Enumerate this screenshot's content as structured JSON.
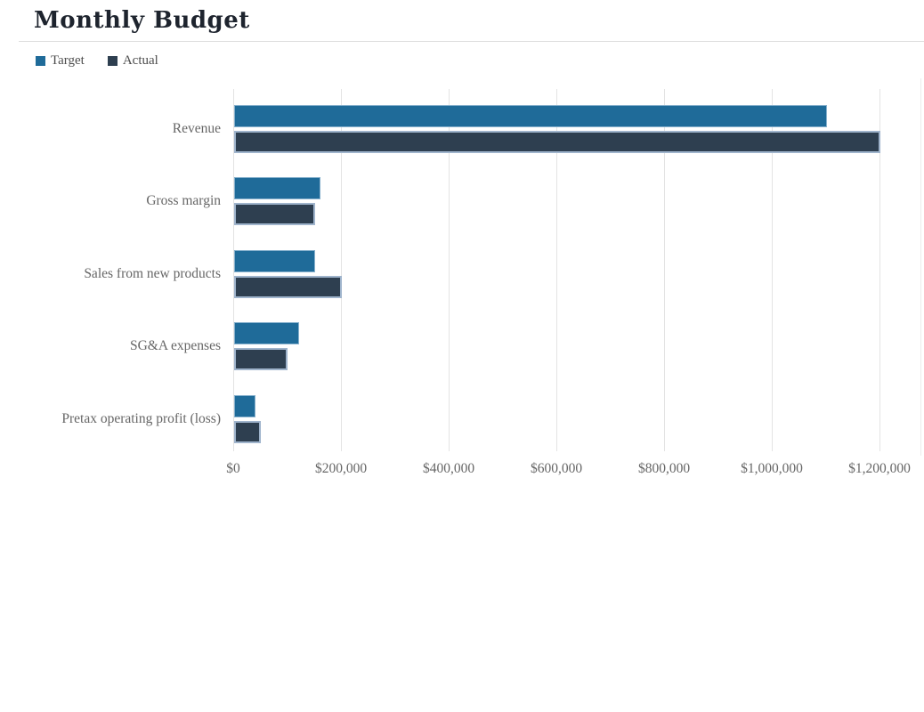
{
  "header": {
    "title": "Monthly Budget"
  },
  "legend": {
    "items": [
      {
        "label": "Target",
        "color": "#1f6b99"
      },
      {
        "label": "Actual",
        "color": "#2e3f50"
      }
    ]
  },
  "chart_data": {
    "type": "bar",
    "orientation": "horizontal",
    "title": "Monthly Budget",
    "categories": [
      "Revenue",
      "Gross margin",
      "Sales from new products",
      "SG&A expenses",
      "Pretax operating profit (loss)"
    ],
    "series": [
      {
        "name": "Target",
        "color": "#1f6b99",
        "values": [
          1100000,
          160000,
          150000,
          120000,
          40000
        ]
      },
      {
        "name": "Actual",
        "color": "#2e3f50",
        "values": [
          1200000,
          150000,
          200000,
          100000,
          50000
        ]
      }
    ],
    "xlim": [
      0,
      1200000
    ],
    "x_ticks": [
      0,
      200000,
      400000,
      600000,
      800000,
      1000000,
      1200000
    ],
    "x_tick_labels": [
      "$0",
      "$200,000",
      "$400,000",
      "$600,000",
      "$800,000",
      "$1,000,000",
      "$1,200,000"
    ],
    "grid": true,
    "legend_position": "top-left",
    "gridline_color": "#e3e3e3",
    "axis_label_color": "#666666",
    "title_color": "#1e242e"
  }
}
